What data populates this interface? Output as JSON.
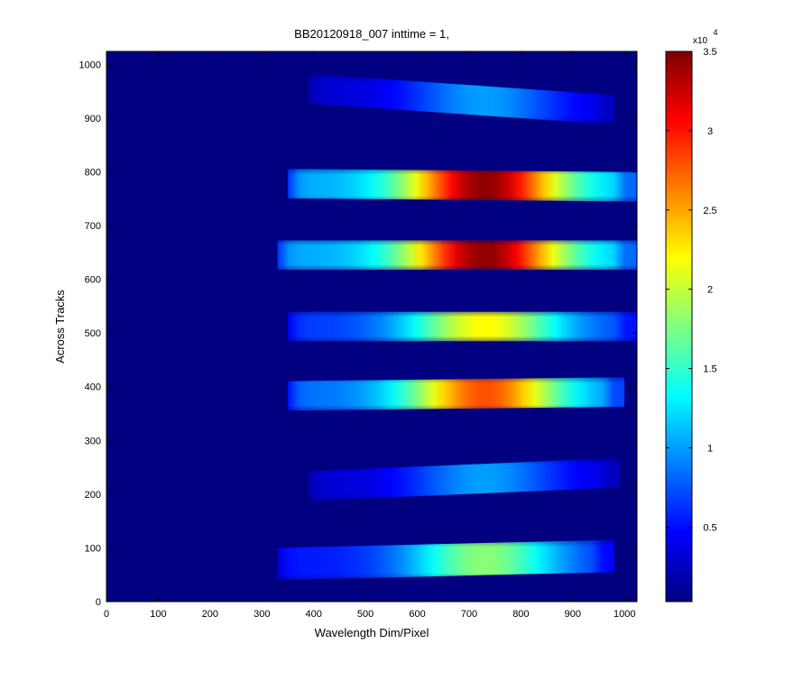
{
  "chart_data": {
    "type": "image",
    "title": "BB20120918_007 inttime = 1,",
    "x_label": "Wavelength Dim/Pixel",
    "y_label": "Across Tracks",
    "xlim": [
      0,
      1024
    ],
    "ylim": [
      0,
      1024
    ],
    "xticks": [
      0,
      100,
      200,
      300,
      400,
      500,
      600,
      700,
      800,
      900,
      1000
    ],
    "yticks": [
      0,
      100,
      200,
      300,
      400,
      500,
      600,
      700,
      800,
      900,
      1000
    ],
    "colorbar": {
      "clim": [
        0.03,
        3.5
      ],
      "ticks": [
        0.5,
        1,
        1.5,
        2,
        2.5,
        3,
        3.5
      ],
      "multiplier": "x10",
      "exponent": "4"
    },
    "bands": [
      {
        "x": [
          390,
          980
        ],
        "y": [
          955,
          915
        ],
        "height": 55,
        "peak": 1.0
      },
      {
        "x": [
          350,
          1024
        ],
        "y": [
          778,
          772
        ],
        "height": 55,
        "peak": 3.45
      },
      {
        "x": [
          330,
          1024
        ],
        "y": [
          645,
          645
        ],
        "height": 55,
        "peak": 3.45
      },
      {
        "x": [
          350,
          1024
        ],
        "y": [
          512,
          512
        ],
        "height": 55,
        "peak": 2.2
      },
      {
        "x": [
          350,
          1000
        ],
        "y": [
          383,
          390
        ],
        "height": 55,
        "peak": 2.8
      },
      {
        "x": [
          390,
          990
        ],
        "y": [
          215,
          240
        ],
        "height": 55,
        "peak": 1.0
      },
      {
        "x": [
          330,
          980
        ],
        "y": [
          70,
          85
        ],
        "height": 60,
        "peak": 1.8
      }
    ]
  }
}
